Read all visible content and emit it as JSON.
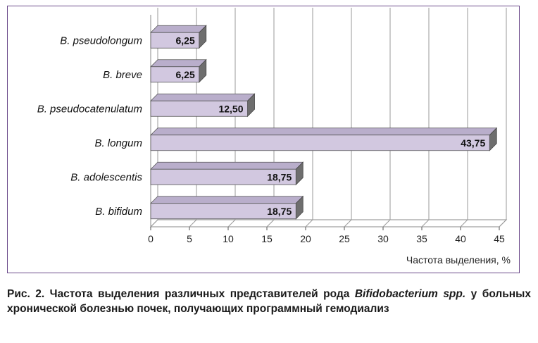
{
  "chart_data": {
    "type": "bar",
    "orientation": "horizontal",
    "style": "3d",
    "categories": [
      "B. pseudolongum",
      "B. breve",
      "B. pseudocatenulatum",
      "B. longum",
      "B. adolescentis",
      "B. bifidum"
    ],
    "values": [
      6.25,
      6.25,
      12.5,
      43.75,
      18.75,
      18.75
    ],
    "value_labels": [
      "6,25",
      "6,25",
      "12,50",
      "43,75",
      "18,75",
      "18,75"
    ],
    "xlabel": "Частота выделения, %",
    "xlim": [
      0,
      45
    ],
    "xticks": [
      0,
      5,
      10,
      15,
      20,
      25,
      30,
      35,
      40,
      45
    ],
    "grid": true,
    "legend": "none",
    "colors": {
      "bar_front": "#d2c8e0",
      "bar_top": "#b9aecb",
      "bar_side": "#6e6e6e",
      "frame": "#6b4a8a"
    }
  },
  "caption": {
    "prefix": "Рис. 2. Частота выделения различных представителей рода ",
    "italic1": "Bifidobacterium",
    "mid": " ",
    "italic2": "spp.",
    "suffix": " у больных хронической болезнью почек, получающих программный гемодиализ"
  }
}
